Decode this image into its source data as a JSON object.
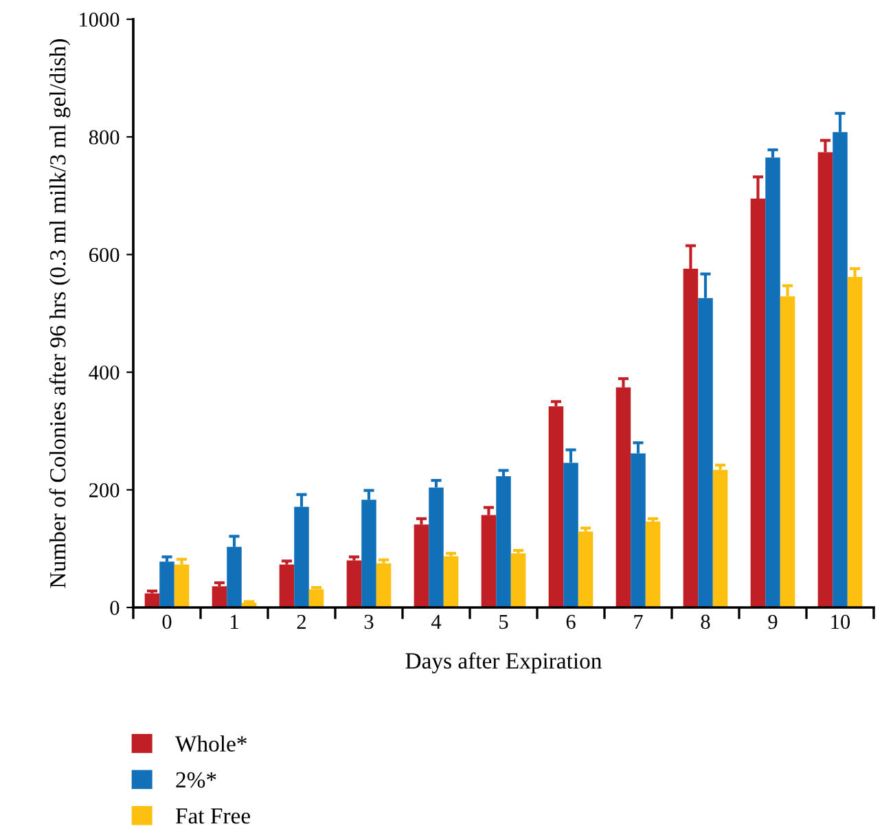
{
  "chart_data": {
    "type": "bar",
    "xlabel": "Days after Expiration",
    "ylabel": "Number of Colonies after 96 hrs (0.3 ml milk/3 ml gel/dish)",
    "categories": [
      "0",
      "1",
      "2",
      "3",
      "4",
      "5",
      "6",
      "7",
      "8",
      "9",
      "10"
    ],
    "ylim": [
      0,
      1000
    ],
    "yticks": [
      0,
      200,
      400,
      600,
      800,
      1000
    ],
    "grid": false,
    "legend": "bottom left",
    "series": [
      {
        "name": "Whole*",
        "color": "#c01f26",
        "values": [
          24,
          36,
          73,
          80,
          141,
          157,
          342,
          374,
          576,
          695,
          774
        ],
        "errors": [
          [
            24,
            28
          ],
          [
            36,
            42
          ],
          [
            73,
            79
          ],
          [
            80,
            86
          ],
          [
            141,
            151
          ],
          [
            157,
            170
          ],
          [
            342,
            350
          ],
          [
            374,
            389
          ],
          [
            576,
            615
          ],
          [
            695,
            732
          ],
          [
            774,
            794
          ]
        ]
      },
      {
        "name": "2%*",
        "color": "#1270b8",
        "values": [
          78,
          103,
          171,
          183,
          204,
          223,
          246,
          262,
          526,
          765,
          808
        ],
        "errors": [
          [
            78,
            86
          ],
          [
            103,
            121
          ],
          [
            171,
            192
          ],
          [
            183,
            199
          ],
          [
            204,
            216
          ],
          [
            223,
            233
          ],
          [
            246,
            268
          ],
          [
            262,
            280
          ],
          [
            526,
            567
          ],
          [
            765,
            778
          ],
          [
            808,
            840
          ]
        ]
      },
      {
        "name": "Fat Free",
        "color": "#fdc010",
        "values": [
          73,
          8,
          31,
          75,
          87,
          92,
          129,
          146,
          234,
          529,
          562
        ],
        "errors": [
          [
            73,
            82
          ],
          [
            8,
            10
          ],
          [
            31,
            34
          ],
          [
            75,
            81
          ],
          [
            87,
            92
          ],
          [
            92,
            97
          ],
          [
            129,
            135
          ],
          [
            146,
            151
          ],
          [
            234,
            242
          ],
          [
            529,
            547
          ],
          [
            562,
            576
          ]
        ]
      }
    ]
  }
}
